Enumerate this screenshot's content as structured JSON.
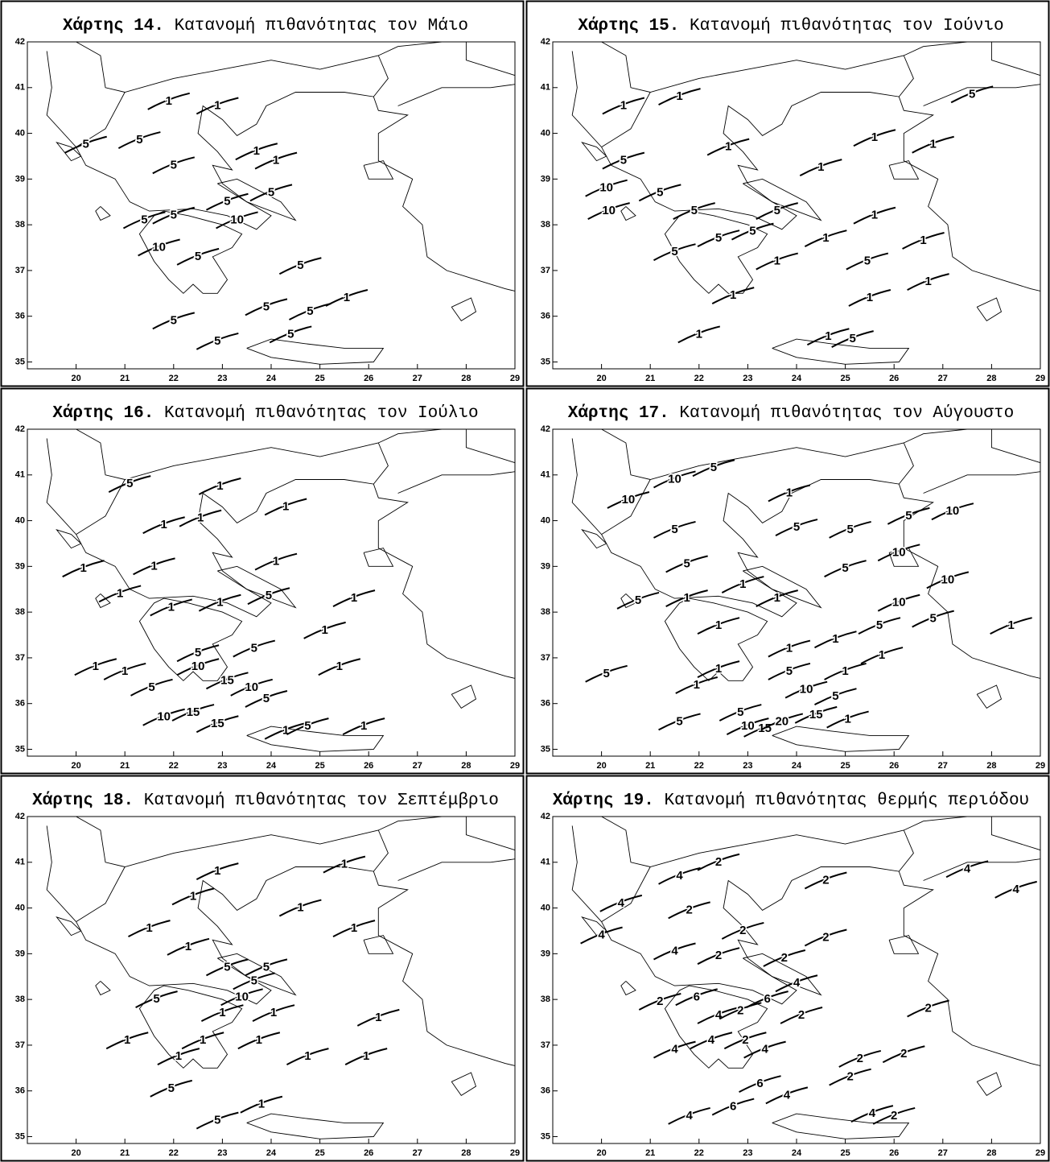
{
  "chart_data": [
    {
      "type": "contour-map",
      "label": "Χάρτης 14.",
      "caption": "Κατανομή πιθανότητας τον Μάιο",
      "xlim": [
        19,
        29
      ],
      "ylim": [
        34.85,
        42
      ],
      "xticks": [
        20,
        21,
        22,
        23,
        24,
        25,
        26,
        27,
        28,
        29
      ],
      "yticks": [
        35,
        36,
        37,
        38,
        39,
        40,
        41,
        42
      ],
      "contour_labels": [
        {
          "value": 5,
          "lon": 20.2,
          "lat": 39.75
        },
        {
          "value": 5,
          "lon": 21.3,
          "lat": 39.85
        },
        {
          "value": 5,
          "lon": 22.0,
          "lat": 39.3
        },
        {
          "value": 1,
          "lon": 21.9,
          "lat": 40.7
        },
        {
          "value": 1,
          "lon": 22.9,
          "lat": 40.6
        },
        {
          "value": 1,
          "lon": 23.7,
          "lat": 39.6
        },
        {
          "value": 1,
          "lon": 24.1,
          "lat": 39.4
        },
        {
          "value": 5,
          "lon": 23.1,
          "lat": 38.5
        },
        {
          "value": 5,
          "lon": 24.0,
          "lat": 38.7
        },
        {
          "value": 10,
          "lon": 23.3,
          "lat": 38.1
        },
        {
          "value": 5,
          "lon": 22.0,
          "lat": 38.2
        },
        {
          "value": 10,
          "lon": 21.7,
          "lat": 37.5
        },
        {
          "value": 5,
          "lon": 22.5,
          "lat": 37.3
        },
        {
          "value": 5,
          "lon": 21.4,
          "lat": 38.1
        },
        {
          "value": 5,
          "lon": 24.6,
          "lat": 37.1
        },
        {
          "value": 5,
          "lon": 22.0,
          "lat": 35.9
        },
        {
          "value": 5,
          "lon": 22.9,
          "lat": 35.45
        },
        {
          "value": 5,
          "lon": 23.9,
          "lat": 36.2
        },
        {
          "value": 5,
          "lon": 24.8,
          "lat": 36.1
        },
        {
          "value": 5,
          "lon": 24.4,
          "lat": 35.6
        },
        {
          "value": 1,
          "lon": 25.55,
          "lat": 36.4
        }
      ]
    },
    {
      "type": "contour-map",
      "label": "Χάρτης 15.",
      "caption": "Κατανομή πιθανότητας τον Ιούνιο",
      "xlim": [
        19,
        29
      ],
      "ylim": [
        34.85,
        42
      ],
      "xticks": [
        20,
        21,
        22,
        23,
        24,
        25,
        26,
        27,
        28,
        29
      ],
      "yticks": [
        35,
        36,
        37,
        38,
        39,
        40,
        41,
        42
      ],
      "contour_labels": [
        {
          "value": 1,
          "lon": 20.45,
          "lat": 40.6
        },
        {
          "value": 1,
          "lon": 21.6,
          "lat": 40.8
        },
        {
          "value": 1,
          "lon": 22.6,
          "lat": 39.7
        },
        {
          "value": 5,
          "lon": 27.6,
          "lat": 40.85
        },
        {
          "value": 1,
          "lon": 25.6,
          "lat": 39.9
        },
        {
          "value": 1,
          "lon": 26.8,
          "lat": 39.75
        },
        {
          "value": 1,
          "lon": 24.5,
          "lat": 39.25
        },
        {
          "value": 5,
          "lon": 20.45,
          "lat": 39.4
        },
        {
          "value": 10,
          "lon": 20.1,
          "lat": 38.8
        },
        {
          "value": 10,
          "lon": 20.15,
          "lat": 38.3
        },
        {
          "value": 5,
          "lon": 21.2,
          "lat": 38.7
        },
        {
          "value": 5,
          "lon": 21.9,
          "lat": 38.3
        },
        {
          "value": 5,
          "lon": 21.5,
          "lat": 37.4
        },
        {
          "value": 5,
          "lon": 22.4,
          "lat": 37.7
        },
        {
          "value": 5,
          "lon": 23.1,
          "lat": 37.85
        },
        {
          "value": 5,
          "lon": 23.6,
          "lat": 38.3
        },
        {
          "value": 1,
          "lon": 25.6,
          "lat": 38.2
        },
        {
          "value": 1,
          "lon": 24.6,
          "lat": 37.7
        },
        {
          "value": 1,
          "lon": 23.6,
          "lat": 37.2
        },
        {
          "value": 5,
          "lon": 25.45,
          "lat": 37.2
        },
        {
          "value": 1,
          "lon": 26.6,
          "lat": 37.65
        },
        {
          "value": 1,
          "lon": 22.7,
          "lat": 36.45
        },
        {
          "value": 1,
          "lon": 22.0,
          "lat": 35.6
        },
        {
          "value": 1,
          "lon": 25.5,
          "lat": 36.4
        },
        {
          "value": 1,
          "lon": 24.65,
          "lat": 35.55
        },
        {
          "value": 5,
          "lon": 25.15,
          "lat": 35.5
        },
        {
          "value": 1,
          "lon": 26.7,
          "lat": 36.75
        }
      ]
    },
    {
      "type": "contour-map",
      "label": "Χάρτης 16.",
      "caption": "Κατανομή πιθανότητας τον Ιούλιο",
      "xlim": [
        19,
        29
      ],
      "ylim": [
        34.85,
        42
      ],
      "xticks": [
        20,
        21,
        22,
        23,
        24,
        25,
        26,
        27,
        28,
        29
      ],
      "yticks": [
        35,
        36,
        37,
        38,
        39,
        40,
        41,
        42
      ],
      "contour_labels": [
        {
          "value": 5,
          "lon": 21.1,
          "lat": 40.8
        },
        {
          "value": 1,
          "lon": 22.95,
          "lat": 40.75
        },
        {
          "value": 1,
          "lon": 21.8,
          "lat": 39.9
        },
        {
          "value": 1,
          "lon": 22.55,
          "lat": 40.05
        },
        {
          "value": 1,
          "lon": 24.3,
          "lat": 40.3
        },
        {
          "value": 1,
          "lon": 20.15,
          "lat": 38.95
        },
        {
          "value": 1,
          "lon": 21.6,
          "lat": 39.0
        },
        {
          "value": 1,
          "lon": 20.9,
          "lat": 38.4
        },
        {
          "value": 1,
          "lon": 21.95,
          "lat": 38.1
        },
        {
          "value": 1,
          "lon": 22.95,
          "lat": 38.2
        },
        {
          "value": 1,
          "lon": 24.1,
          "lat": 39.1
        },
        {
          "value": 5,
          "lon": 23.95,
          "lat": 38.35
        },
        {
          "value": 1,
          "lon": 25.7,
          "lat": 38.3
        },
        {
          "value": 1,
          "lon": 21.0,
          "lat": 36.7
        },
        {
          "value": 1,
          "lon": 20.4,
          "lat": 36.8
        },
        {
          "value": 5,
          "lon": 22.5,
          "lat": 37.1
        },
        {
          "value": 5,
          "lon": 23.65,
          "lat": 37.2
        },
        {
          "value": 10,
          "lon": 22.5,
          "lat": 36.8
        },
        {
          "value": 15,
          "lon": 23.1,
          "lat": 36.5
        },
        {
          "value": 10,
          "lon": 23.6,
          "lat": 36.35
        },
        {
          "value": 5,
          "lon": 21.55,
          "lat": 36.35
        },
        {
          "value": 10,
          "lon": 21.8,
          "lat": 35.7
        },
        {
          "value": 15,
          "lon": 22.4,
          "lat": 35.8
        },
        {
          "value": 15,
          "lon": 22.9,
          "lat": 35.55
        },
        {
          "value": 5,
          "lon": 23.9,
          "lat": 36.1
        },
        {
          "value": 1,
          "lon": 24.3,
          "lat": 35.4
        },
        {
          "value": 5,
          "lon": 24.75,
          "lat": 35.5
        },
        {
          "value": 1,
          "lon": 25.4,
          "lat": 36.8
        },
        {
          "value": 1,
          "lon": 25.9,
          "lat": 35.5
        },
        {
          "value": 1,
          "lon": 25.1,
          "lat": 37.6
        }
      ]
    },
    {
      "type": "contour-map",
      "label": "Χάρτης 17.",
      "caption": "Κατανομή πιθανότητας τον Αύγουστο",
      "xlim": [
        19,
        29
      ],
      "ylim": [
        34.85,
        42
      ],
      "xticks": [
        20,
        21,
        22,
        23,
        24,
        25,
        26,
        27,
        28,
        29
      ],
      "yticks": [
        35,
        36,
        37,
        38,
        39,
        40,
        41,
        42
      ],
      "contour_labels": [
        {
          "value": 10,
          "lon": 20.55,
          "lat": 40.45
        },
        {
          "value": 10,
          "lon": 21.5,
          "lat": 40.9
        },
        {
          "value": 5,
          "lon": 22.3,
          "lat": 41.15
        },
        {
          "value": 5,
          "lon": 21.5,
          "lat": 39.8
        },
        {
          "value": 5,
          "lon": 21.75,
          "lat": 39.05
        },
        {
          "value": 1,
          "lon": 23.85,
          "lat": 40.6
        },
        {
          "value": 5,
          "lon": 24.0,
          "lat": 39.85
        },
        {
          "value": 5,
          "lon": 25.1,
          "lat": 39.8
        },
        {
          "value": 5,
          "lon": 26.3,
          "lat": 40.1
        },
        {
          "value": 10,
          "lon": 27.2,
          "lat": 40.2
        },
        {
          "value": 10,
          "lon": 26.1,
          "lat": 39.3
        },
        {
          "value": 10,
          "lon": 27.1,
          "lat": 38.7
        },
        {
          "value": 10,
          "lon": 26.1,
          "lat": 38.2
        },
        {
          "value": 5,
          "lon": 25.0,
          "lat": 38.95
        },
        {
          "value": 1,
          "lon": 23.6,
          "lat": 38.3
        },
        {
          "value": 1,
          "lon": 22.9,
          "lat": 38.6
        },
        {
          "value": 5,
          "lon": 20.75,
          "lat": 38.25
        },
        {
          "value": 1,
          "lon": 21.75,
          "lat": 38.3
        },
        {
          "value": 1,
          "lon": 22.4,
          "lat": 37.7
        },
        {
          "value": 1,
          "lon": 22.4,
          "lat": 36.75
        },
        {
          "value": 1,
          "lon": 21.95,
          "lat": 36.4
        },
        {
          "value": 1,
          "lon": 24.8,
          "lat": 37.4
        },
        {
          "value": 1,
          "lon": 25.75,
          "lat": 37.05
        },
        {
          "value": 5,
          "lon": 25.7,
          "lat": 37.7
        },
        {
          "value": 5,
          "lon": 26.8,
          "lat": 37.85
        },
        {
          "value": 1,
          "lon": 28.4,
          "lat": 37.7
        },
        {
          "value": 5,
          "lon": 20.1,
          "lat": 36.65
        },
        {
          "value": 1,
          "lon": 23.85,
          "lat": 37.2
        },
        {
          "value": 5,
          "lon": 23.85,
          "lat": 36.7
        },
        {
          "value": 10,
          "lon": 24.2,
          "lat": 36.3
        },
        {
          "value": 5,
          "lon": 24.8,
          "lat": 36.15
        },
        {
          "value": 1,
          "lon": 25.0,
          "lat": 36.7
        },
        {
          "value": 5,
          "lon": 21.6,
          "lat": 35.6
        },
        {
          "value": 5,
          "lon": 22.85,
          "lat": 35.8
        },
        {
          "value": 10,
          "lon": 23.0,
          "lat": 35.5
        },
        {
          "value": 15,
          "lon": 23.35,
          "lat": 35.45
        },
        {
          "value": 20,
          "lon": 23.7,
          "lat": 35.6
        },
        {
          "value": 15,
          "lon": 24.4,
          "lat": 35.75
        },
        {
          "value": 1,
          "lon": 25.05,
          "lat": 35.65
        }
      ]
    },
    {
      "type": "contour-map",
      "label": "Χάρτης 18.",
      "caption": "Κατανομή πιθανότητας τον Σεπτέμβριο",
      "xlim": [
        19,
        29
      ],
      "ylim": [
        34.85,
        42
      ],
      "xticks": [
        20,
        21,
        22,
        23,
        24,
        25,
        26,
        27,
        28,
        29
      ],
      "yticks": [
        35,
        36,
        37,
        38,
        39,
        40,
        41,
        42
      ],
      "contour_labels": [
        {
          "value": 1,
          "lon": 22.9,
          "lat": 40.8
        },
        {
          "value": 1,
          "lon": 22.4,
          "lat": 40.25
        },
        {
          "value": 1,
          "lon": 25.5,
          "lat": 40.95
        },
        {
          "value": 1,
          "lon": 24.6,
          "lat": 40.0
        },
        {
          "value": 1,
          "lon": 21.5,
          "lat": 39.55
        },
        {
          "value": 1,
          "lon": 22.3,
          "lat": 39.15
        },
        {
          "value": 5,
          "lon": 23.1,
          "lat": 38.7
        },
        {
          "value": 5,
          "lon": 23.65,
          "lat": 38.4
        },
        {
          "value": 10,
          "lon": 23.4,
          "lat": 38.05
        },
        {
          "value": 5,
          "lon": 23.9,
          "lat": 38.7
        },
        {
          "value": 1,
          "lon": 24.05,
          "lat": 37.7
        },
        {
          "value": 1,
          "lon": 23.0,
          "lat": 37.7
        },
        {
          "value": 1,
          "lon": 21.05,
          "lat": 37.1
        },
        {
          "value": 1,
          "lon": 22.1,
          "lat": 36.75
        },
        {
          "value": 1,
          "lon": 22.6,
          "lat": 37.1
        },
        {
          "value": 1,
          "lon": 23.75,
          "lat": 37.1
        },
        {
          "value": 1,
          "lon": 24.75,
          "lat": 36.75
        },
        {
          "value": 1,
          "lon": 25.95,
          "lat": 36.75
        },
        {
          "value": 1,
          "lon": 26.2,
          "lat": 37.6
        },
        {
          "value": 1,
          "lon": 25.7,
          "lat": 39.55
        },
        {
          "value": 5,
          "lon": 21.95,
          "lat": 36.05
        },
        {
          "value": 5,
          "lon": 22.9,
          "lat": 35.35
        },
        {
          "value": 1,
          "lon": 23.8,
          "lat": 35.7
        },
        {
          "value": 5,
          "lon": 21.65,
          "lat": 38.0
        }
      ]
    },
    {
      "type": "contour-map",
      "label": "Χάρτης 19.",
      "caption": "Κατανομή πιθανότητας θερμής περιόδου",
      "xlim": [
        19,
        29
      ],
      "ylim": [
        34.85,
        42
      ],
      "xticks": [
        20,
        21,
        22,
        23,
        24,
        25,
        26,
        27,
        28,
        29
      ],
      "yticks": [
        35,
        36,
        37,
        38,
        39,
        40,
        41,
        42
      ],
      "contour_labels": [
        {
          "value": 4,
          "lon": 21.6,
          "lat": 40.7
        },
        {
          "value": 4,
          "lon": 20.4,
          "lat": 40.1
        },
        {
          "value": 2,
          "lon": 22.4,
          "lat": 41.0
        },
        {
          "value": 2,
          "lon": 21.8,
          "lat": 39.95
        },
        {
          "value": 4,
          "lon": 21.5,
          "lat": 39.05
        },
        {
          "value": 2,
          "lon": 22.4,
          "lat": 38.95
        },
        {
          "value": 2,
          "lon": 22.9,
          "lat": 39.5
        },
        {
          "value": 2,
          "lon": 24.6,
          "lat": 40.6
        },
        {
          "value": 2,
          "lon": 24.6,
          "lat": 39.35
        },
        {
          "value": 2,
          "lon": 23.75,
          "lat": 38.9
        },
        {
          "value": 4,
          "lon": 27.5,
          "lat": 40.85
        },
        {
          "value": 4,
          "lon": 28.5,
          "lat": 40.4
        },
        {
          "value": 4,
          "lon": 20.0,
          "lat": 39.4
        },
        {
          "value": 6,
          "lon": 21.95,
          "lat": 38.05
        },
        {
          "value": 2,
          "lon": 21.2,
          "lat": 37.95
        },
        {
          "value": 4,
          "lon": 22.4,
          "lat": 37.65
        },
        {
          "value": 2,
          "lon": 22.85,
          "lat": 37.75
        },
        {
          "value": 6,
          "lon": 23.4,
          "lat": 38.0
        },
        {
          "value": 4,
          "lon": 24.0,
          "lat": 38.35
        },
        {
          "value": 2,
          "lon": 24.1,
          "lat": 37.65
        },
        {
          "value": 4,
          "lon": 21.5,
          "lat": 36.9
        },
        {
          "value": 4,
          "lon": 22.25,
          "lat": 37.1
        },
        {
          "value": 2,
          "lon": 22.95,
          "lat": 37.1
        },
        {
          "value": 4,
          "lon": 23.35,
          "lat": 36.9
        },
        {
          "value": 6,
          "lon": 23.25,
          "lat": 36.15
        },
        {
          "value": 6,
          "lon": 22.7,
          "lat": 35.65
        },
        {
          "value": 4,
          "lon": 23.8,
          "lat": 35.9
        },
        {
          "value": 4,
          "lon": 21.8,
          "lat": 35.45
        },
        {
          "value": 2,
          "lon": 25.3,
          "lat": 36.7
        },
        {
          "value": 2,
          "lon": 26.2,
          "lat": 36.8
        },
        {
          "value": 2,
          "lon": 26.7,
          "lat": 37.8
        },
        {
          "value": 2,
          "lon": 25.1,
          "lat": 36.3
        },
        {
          "value": 4,
          "lon": 25.55,
          "lat": 35.5
        },
        {
          "value": 2,
          "lon": 26.0,
          "lat": 35.45
        }
      ]
    }
  ]
}
